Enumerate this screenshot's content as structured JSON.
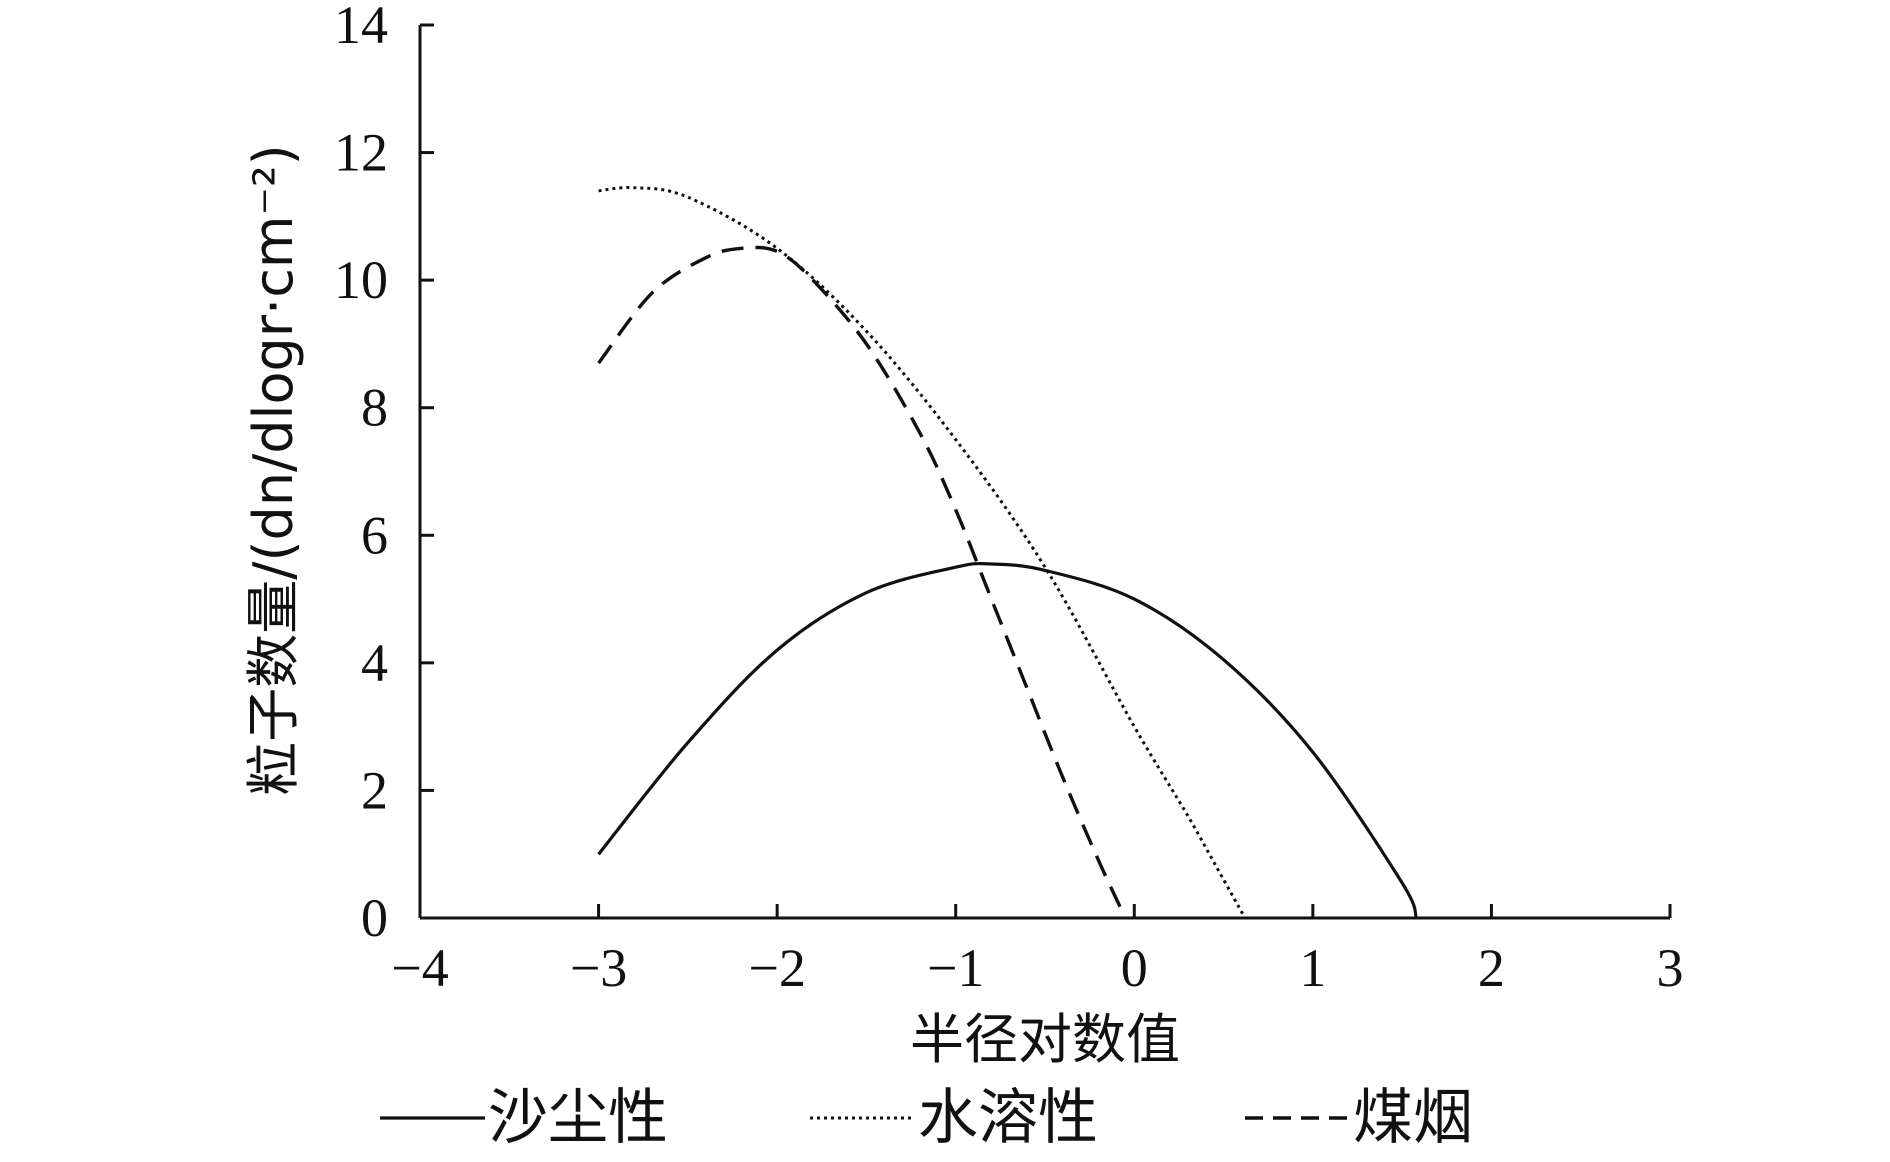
{
  "chart_data": {
    "type": "line",
    "title": "",
    "xlabel": "半径对数值",
    "ylabel": "粒子数量/(dn/dlogr·cm⁻²)",
    "xlim": [
      -4,
      3
    ],
    "ylim": [
      0,
      14
    ],
    "x_ticks": [
      -4,
      -3,
      -2,
      -1,
      0,
      1,
      2,
      3
    ],
    "x_tick_labels": [
      "−4",
      "−3",
      "−2",
      "−1",
      "0",
      "1",
      "2",
      "3"
    ],
    "y_ticks": [
      0,
      2,
      4,
      6,
      8,
      10,
      12,
      14
    ],
    "y_tick_labels": [
      "0",
      "2",
      "4",
      "6",
      "8",
      "10",
      "12",
      "14"
    ],
    "grid": false,
    "legend_position": "bottom",
    "series": [
      {
        "name": "沙尘性",
        "style": "solid",
        "x": [
          -3.0,
          -2.5,
          -2.0,
          -1.5,
          -1.0,
          -0.8,
          -0.5,
          0.0,
          0.5,
          1.0,
          1.5,
          1.58
        ],
        "y": [
          1.0,
          2.75,
          4.2,
          5.1,
          5.5,
          5.55,
          5.45,
          5.0,
          4.05,
          2.6,
          0.55,
          0.0
        ]
      },
      {
        "name": "水溶性",
        "style": "dotted",
        "x": [
          -3.0,
          -2.8,
          -2.5,
          -2.0,
          -1.5,
          -1.0,
          -0.5,
          0.0,
          0.3,
          0.5,
          0.62
        ],
        "y": [
          11.4,
          11.45,
          11.3,
          10.5,
          9.2,
          7.5,
          5.5,
          3.0,
          1.6,
          0.6,
          0.0
        ]
      },
      {
        "name": "煤烟",
        "style": "dashed",
        "x": [
          -3.0,
          -2.7,
          -2.4,
          -2.2,
          -2.0,
          -1.8,
          -1.5,
          -1.2,
          -1.0,
          -0.8,
          -0.6,
          -0.4,
          -0.2,
          -0.05
        ],
        "y": [
          8.7,
          9.8,
          10.35,
          10.5,
          10.45,
          10.0,
          9.0,
          7.6,
          6.4,
          5.0,
          3.6,
          2.2,
          0.9,
          0.0
        ]
      }
    ]
  },
  "legend": {
    "items": [
      {
        "label": "沙尘性",
        "style": "solid"
      },
      {
        "label": "水溶性",
        "style": "dotted"
      },
      {
        "label": "煤烟",
        "style": "dashed"
      }
    ]
  },
  "colors": {
    "axis": "#111111",
    "series": "#111111",
    "background": "#ffffff"
  }
}
